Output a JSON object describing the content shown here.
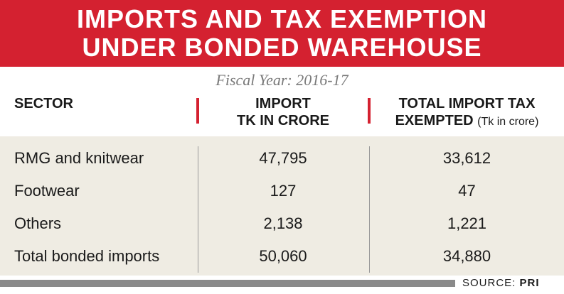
{
  "chart_data": {
    "type": "table",
    "title_line1": "IMPORTS AND TAX EXEMPTION",
    "title_line2": "UNDER BONDED WAREHOUSE",
    "subtitle": "Fiscal Year: 2016-17",
    "columns": {
      "sector": "SECTOR",
      "import_line1": "IMPORT",
      "import_line2": "TK IN CRORE",
      "tax_line1": "TOTAL IMPORT TAX",
      "tax_line2": "EXEMPTED",
      "tax_unit": "(Tk in crore)"
    },
    "rows": [
      {
        "sector": "RMG and knitwear",
        "import": "47,795",
        "tax": "33,612"
      },
      {
        "sector": "Footwear",
        "import": "127",
        "tax": "47"
      },
      {
        "sector": "Others",
        "import": "2,138",
        "tax": "1,221"
      },
      {
        "sector": "Total bonded imports",
        "import": "50,060",
        "tax": "34,880"
      }
    ],
    "source_label": "SOURCE:",
    "source_name": "PRI"
  },
  "colors": {
    "accent": "#d42130",
    "table_bg": "#efece3",
    "footer_bar": "#8a8a8a"
  }
}
